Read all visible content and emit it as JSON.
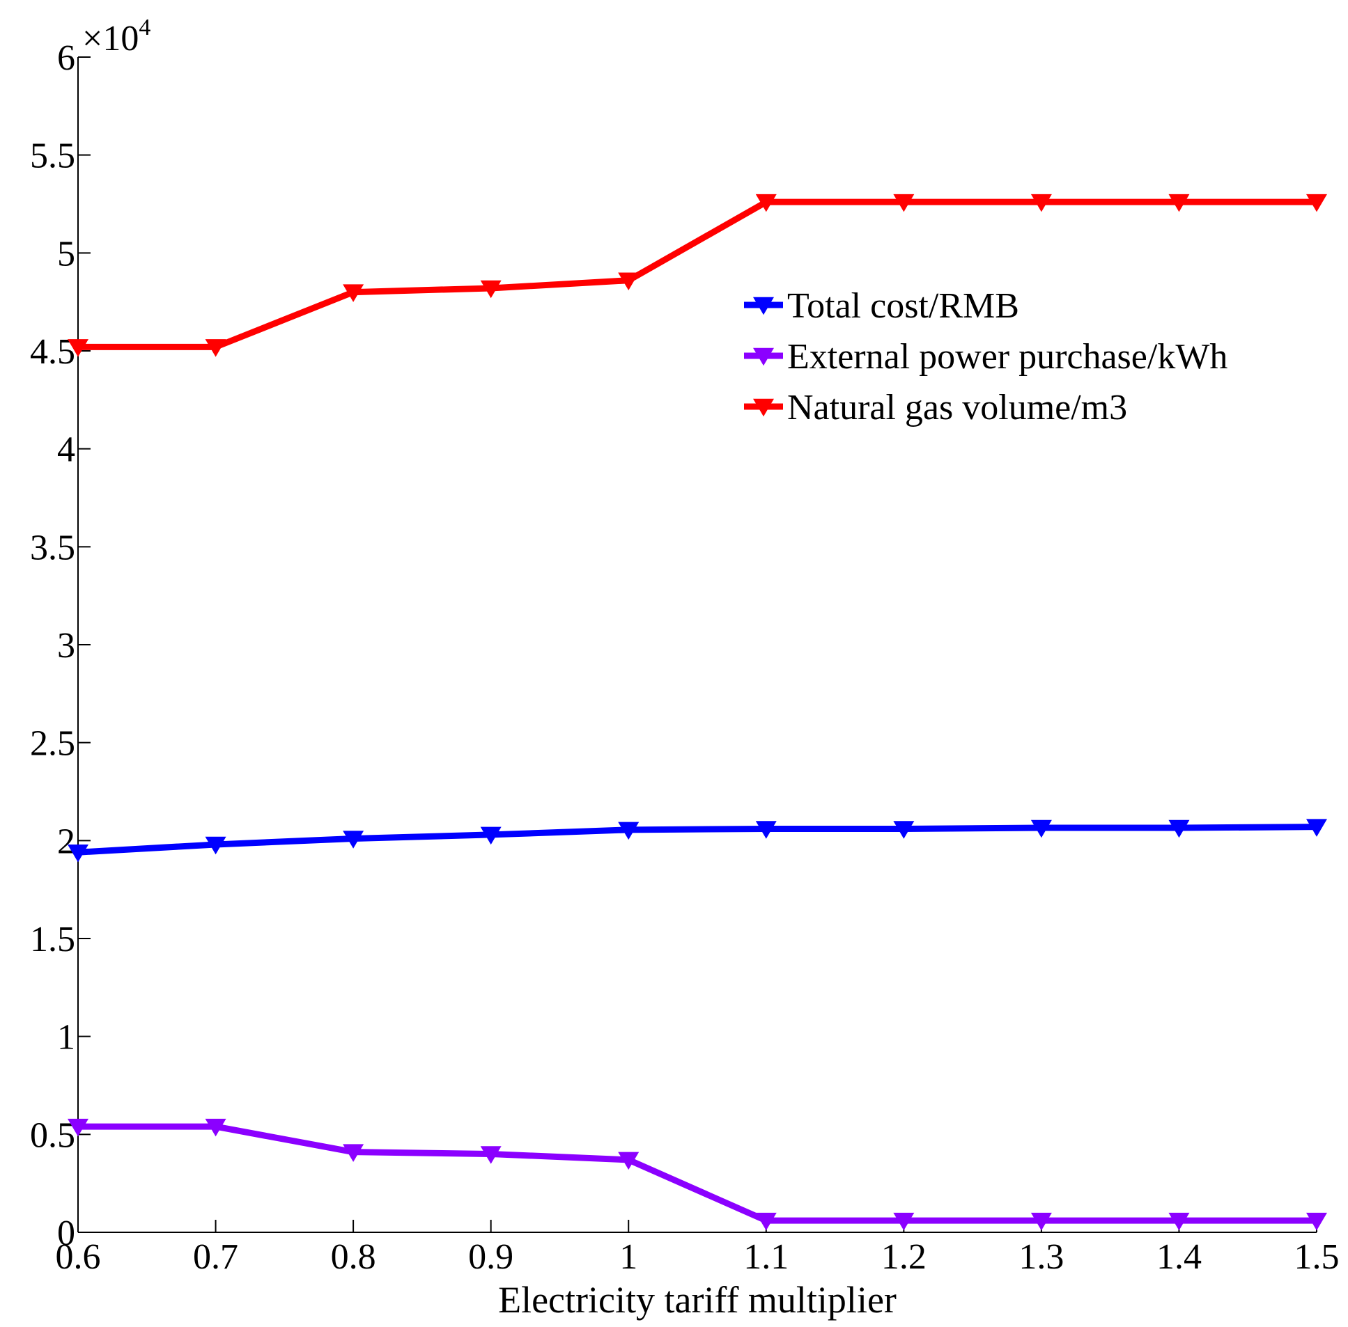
{
  "chart_data": {
    "type": "line",
    "title": "",
    "xlabel": "Electricity tariff multiplier",
    "ylabel": "",
    "x": [
      0.6,
      0.7,
      0.8,
      0.9,
      1.0,
      1.1,
      1.2,
      1.3,
      1.4,
      1.5
    ],
    "xlim": [
      0.6,
      1.5
    ],
    "ylim": [
      0,
      60000
    ],
    "y_scale_factor_label": {
      "base": "×10",
      "exponent": "4"
    },
    "x_tick_labels": [
      "0.6",
      "0.7",
      "0.8",
      "0.9",
      "1",
      "1.1",
      "1.2",
      "1.3",
      "1.4",
      "1.5"
    ],
    "y_tick_values": [
      0,
      0.5,
      1,
      1.5,
      2,
      2.5,
      3,
      3.5,
      4,
      4.5,
      5,
      5.5,
      6
    ],
    "y_tick_labels": [
      "0",
      "0.5",
      "1",
      "1.5",
      "2",
      "2.5",
      "3",
      "3.5",
      "4",
      "4.5",
      "5",
      "5.5",
      "6"
    ],
    "grid": false,
    "legend_position": "upper-right",
    "series": [
      {
        "name": "Total cost/RMB",
        "color": "#0000ff",
        "marker": "triangle-down",
        "values": [
          19400,
          19800,
          20100,
          20300,
          20550,
          20600,
          20600,
          20650,
          20650,
          20700
        ]
      },
      {
        "name": "External power purchase/kWh",
        "color": "#8b00ff",
        "marker": "triangle-down",
        "values": [
          5400,
          5400,
          4100,
          4000,
          3700,
          600,
          600,
          600,
          600,
          600
        ]
      },
      {
        "name": "Natural gas volume/m3",
        "color": "#ff0000",
        "marker": "triangle-down",
        "values": [
          45200,
          45200,
          48000,
          48200,
          48600,
          52600,
          52600,
          52600,
          52600,
          52600
        ]
      }
    ]
  }
}
